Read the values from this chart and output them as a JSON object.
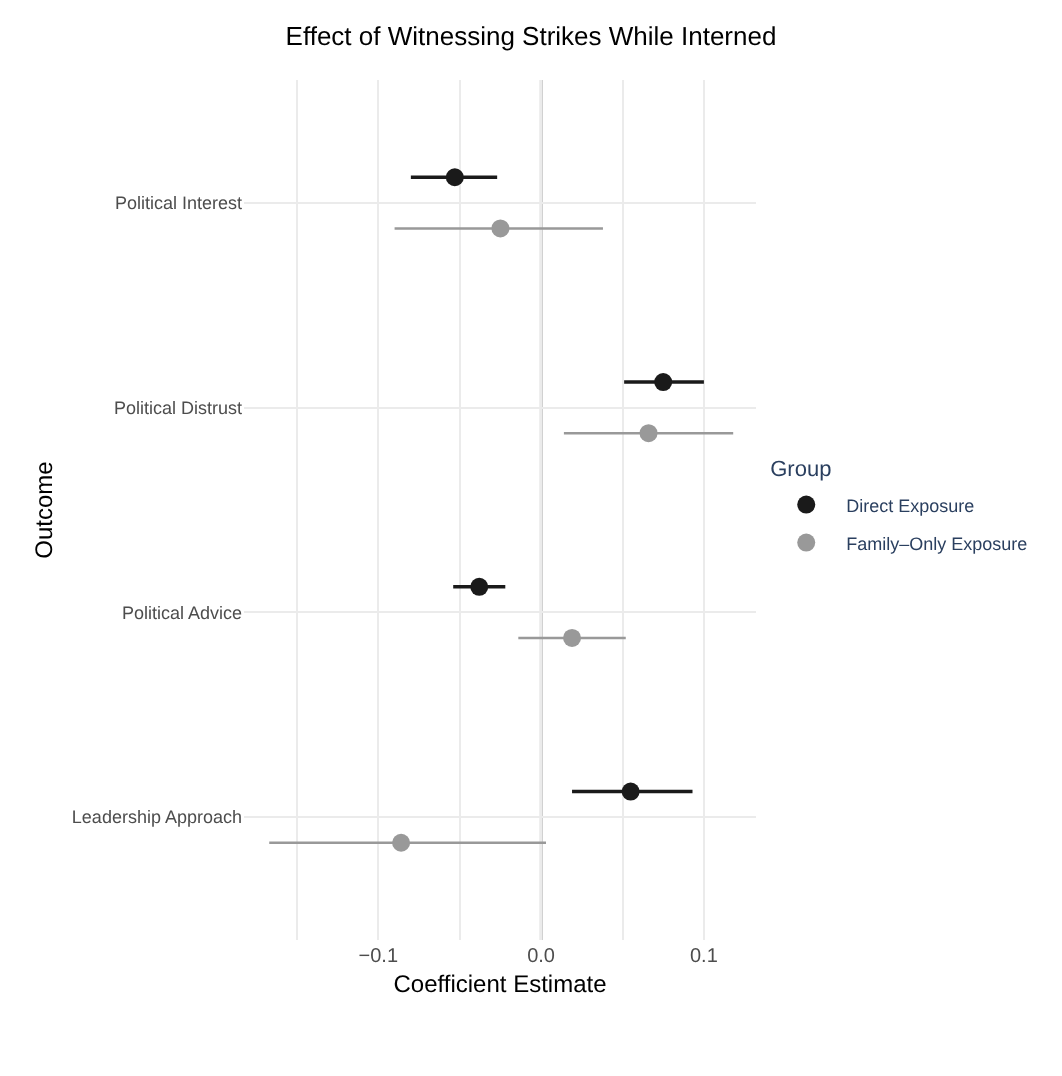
{
  "chart_data": {
    "type": "scatter",
    "orientation": "horizontal",
    "title": "Effect of Witnessing Strikes While Interned",
    "xlabel": "Coefficient Estimate",
    "ylabel": "Outcome",
    "legend_title": "Group",
    "categories": [
      "Political Interest",
      "Political Distrust",
      "Political Advice",
      "Leadership Approach"
    ],
    "series": [
      {
        "name": "Direct Exposure",
        "color": "#1a1a1a",
        "values": [
          -0.053,
          0.075,
          -0.038,
          0.055
        ],
        "errors": [
          [
            -0.08,
            -0.027
          ],
          [
            0.051,
            0.1
          ],
          [
            -0.054,
            -0.022
          ],
          [
            0.019,
            0.093
          ]
        ]
      },
      {
        "name": "Family–Only Exposure",
        "color": "#999999",
        "values": [
          -0.025,
          0.066,
          0.019,
          -0.086
        ],
        "errors": [
          [
            -0.09,
            0.038
          ],
          [
            0.014,
            0.118
          ],
          [
            -0.014,
            0.052
          ],
          [
            -0.167,
            0.003
          ]
        ]
      }
    ],
    "xlim": [
      -0.1825,
      0.132
    ],
    "xticks": [
      {
        "value": -0.15,
        "label": null
      },
      {
        "value": -0.1,
        "label": "−0.1"
      },
      {
        "value": -0.05,
        "label": null
      },
      {
        "value": 0,
        "label": "0.0"
      },
      {
        "value": 0.05,
        "label": null
      },
      {
        "value": 0.1,
        "label": "0.1"
      }
    ],
    "ref_lines": [
      {
        "axis": "x",
        "value": 0,
        "color": "#666666"
      }
    ],
    "grid": true,
    "legend": "right",
    "marker": "circle"
  }
}
